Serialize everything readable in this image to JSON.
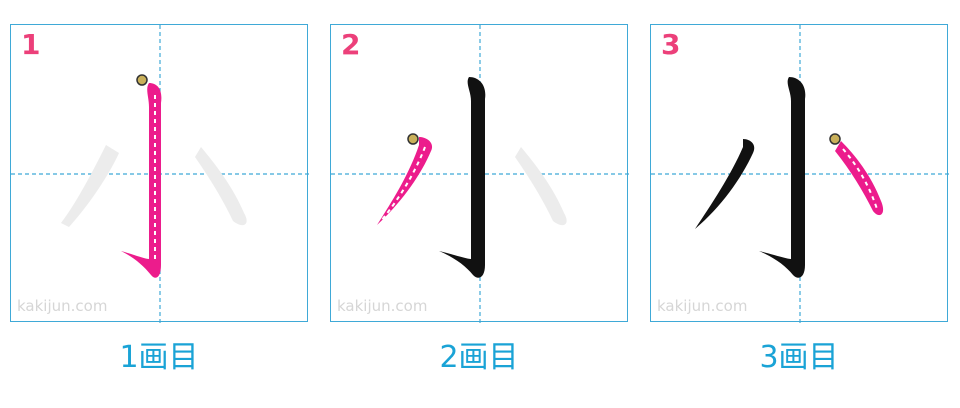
{
  "character": "小",
  "colors": {
    "border": "#3fa9d7",
    "guide": "#3fa9d7",
    "current_stroke": "#ec1c8c",
    "done_stroke": "#111111",
    "ghost_stroke": "#ececec",
    "step_number": "#ec407a",
    "caption": "#1aa3d6",
    "watermark": "#d6d6d6"
  },
  "panels": [
    {
      "number": "1",
      "caption": "1画目",
      "watermark": "kakijun.com"
    },
    {
      "number": "2",
      "caption": "2画目",
      "watermark": "kakijun.com"
    },
    {
      "number": "3",
      "caption": "3画目",
      "watermark": "kakijun.com"
    }
  ]
}
